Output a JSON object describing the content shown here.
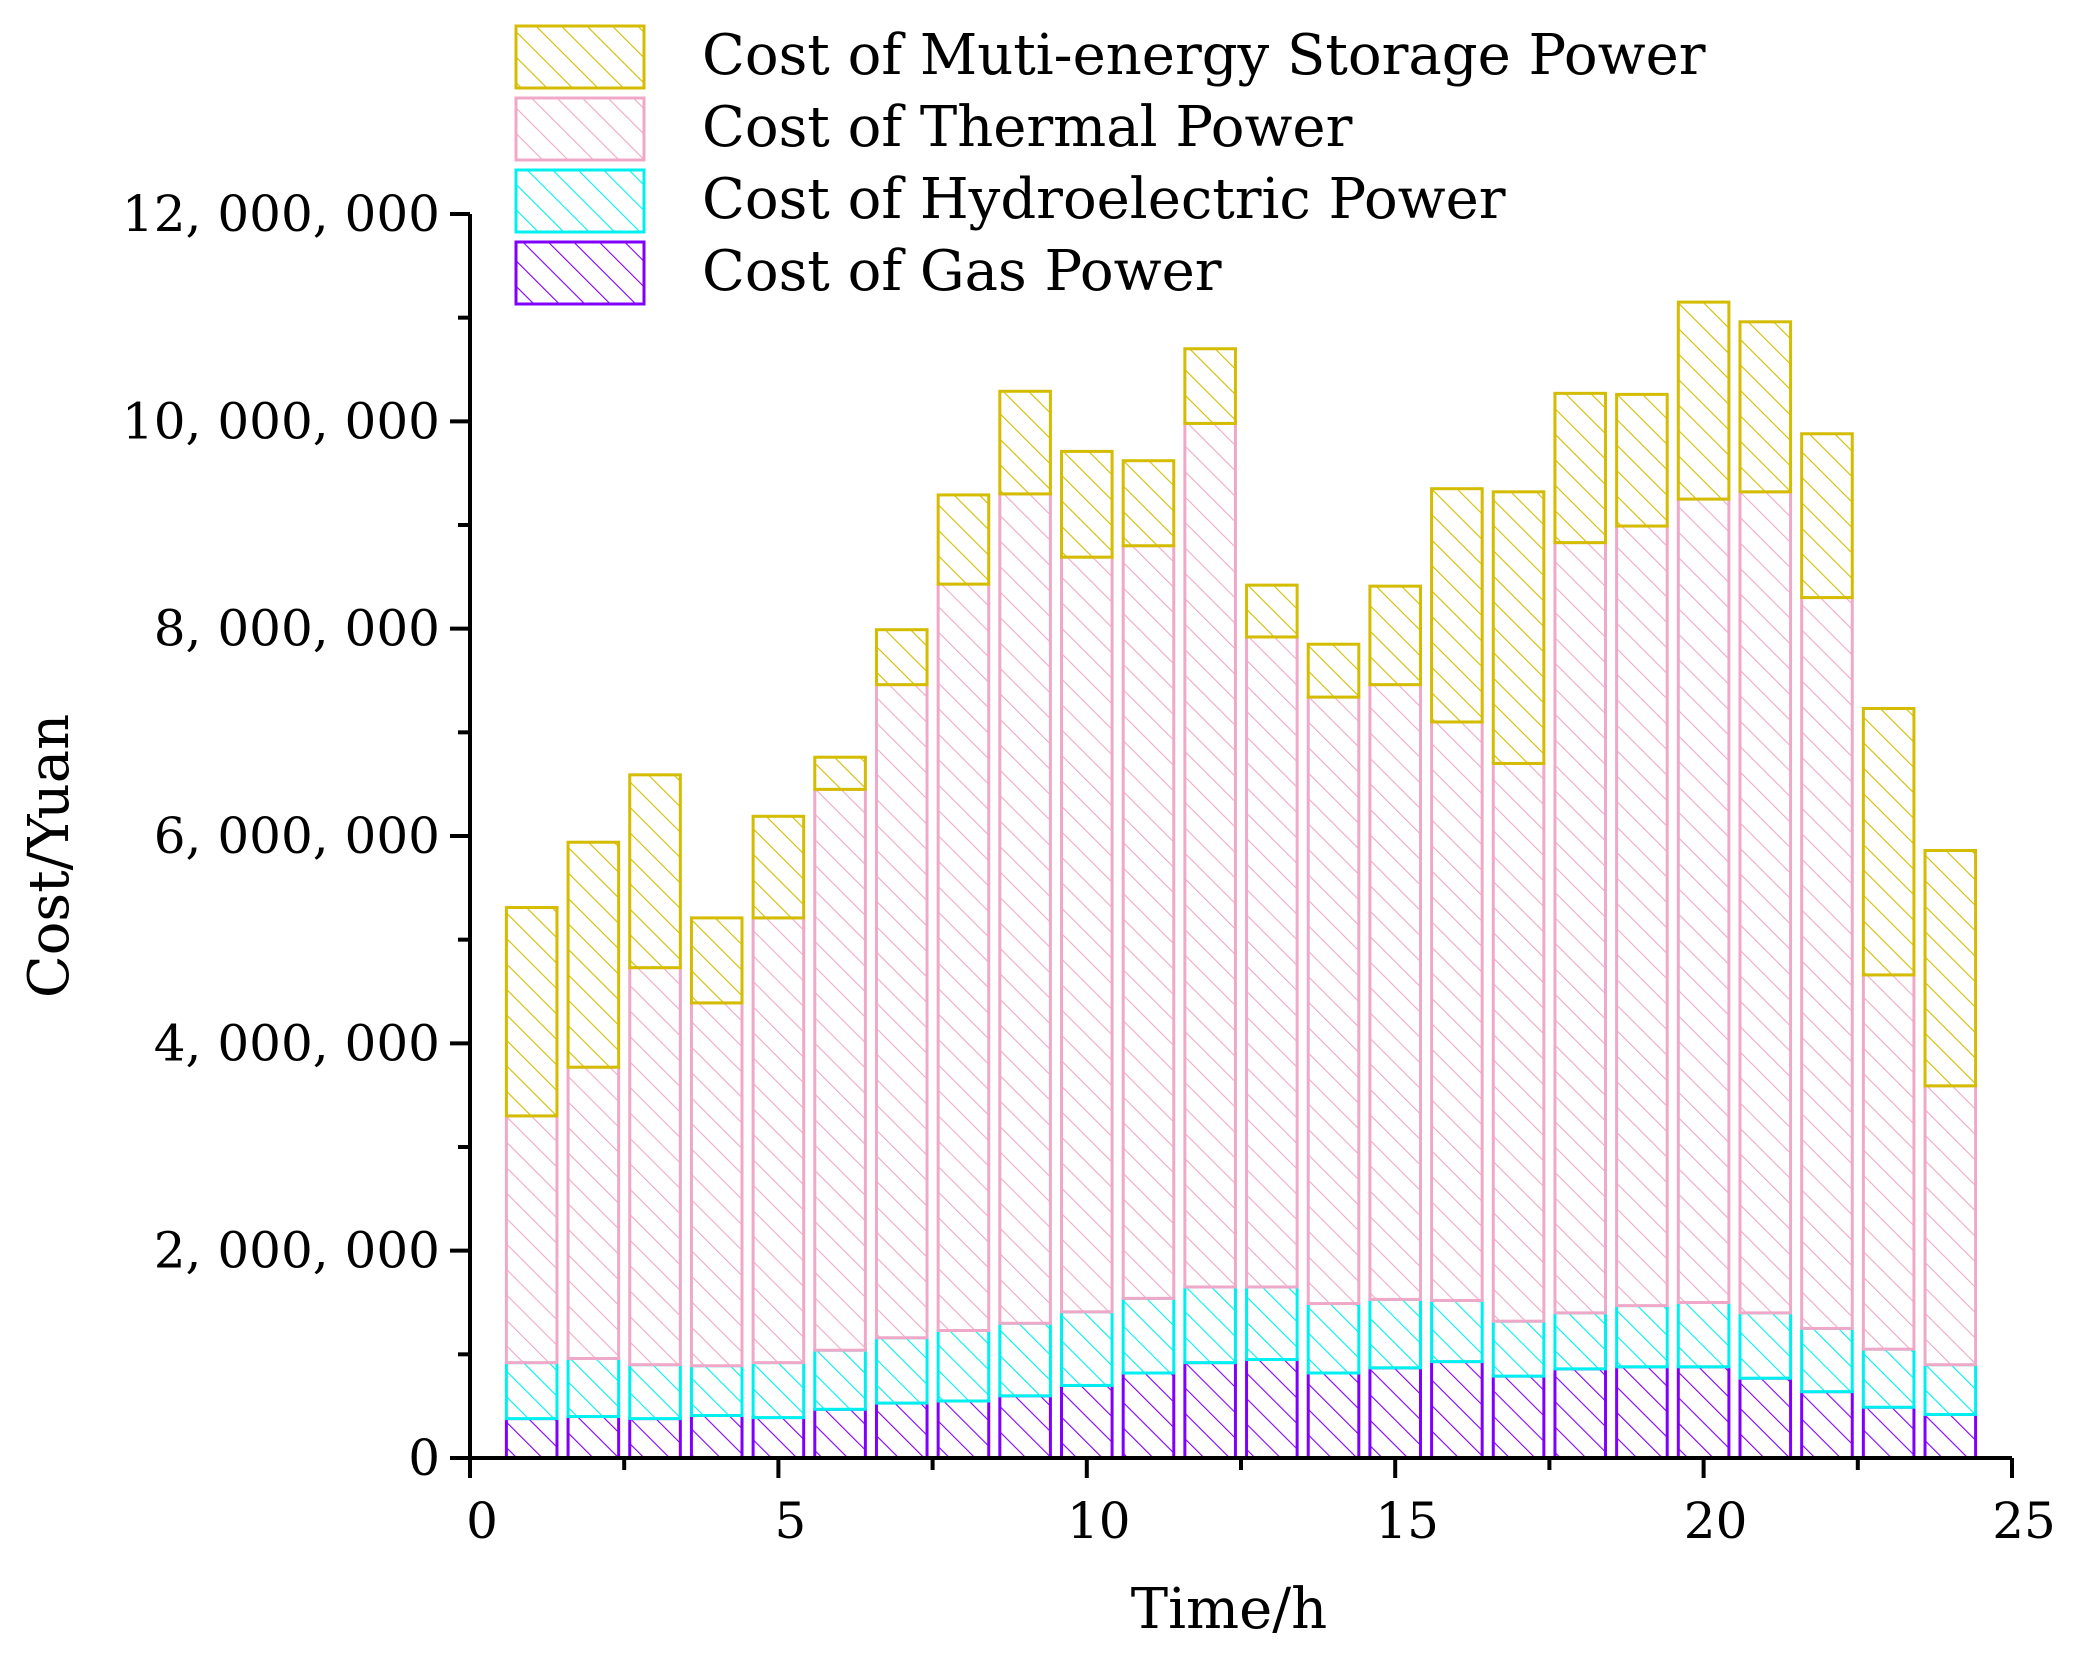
{
  "chart_data": {
    "type": "bar",
    "stacked": true,
    "xlabel": "Time/h",
    "ylabel": "Cost/Yuan",
    "xlim": [
      0,
      25
    ],
    "ylim": [
      0,
      12000000
    ],
    "x_ticks": [
      0,
      5,
      10,
      15,
      20,
      25
    ],
    "x_tick_labels": [
      "0",
      "5",
      "10",
      "15",
      "20",
      "25"
    ],
    "y_ticks": [
      0,
      2000000,
      4000000,
      6000000,
      8000000,
      10000000,
      12000000
    ],
    "y_tick_labels": [
      "0",
      "2, 000, 000",
      "4, 000, 000",
      "6, 000, 000",
      "8, 000, 000",
      "10, 000, 000",
      "12, 000, 000"
    ],
    "legend_position": "top-center",
    "x": [
      1,
      2,
      3,
      4,
      5,
      6,
      7,
      8,
      9,
      10,
      11,
      12,
      13,
      14,
      15,
      16,
      17,
      18,
      19,
      20,
      21,
      22,
      23,
      24
    ],
    "series": [
      {
        "name": "Cost of Gas Power",
        "stroke": "#8000ff",
        "fill": "#ffffff",
        "values": [
          380000,
          400000,
          380000,
          410000,
          390000,
          470000,
          530000,
          550000,
          600000,
          700000,
          820000,
          920000,
          950000,
          820000,
          870000,
          930000,
          790000,
          860000,
          880000,
          880000,
          770000,
          640000,
          490000,
          420000
        ]
      },
      {
        "name": "Cost of Hydroelectric Power",
        "stroke": "#00f0f0",
        "fill": "#ffffff",
        "values": [
          540000,
          560000,
          520000,
          480000,
          530000,
          570000,
          630000,
          680000,
          700000,
          710000,
          720000,
          730000,
          700000,
          670000,
          660000,
          590000,
          530000,
          540000,
          590000,
          620000,
          630000,
          610000,
          560000,
          480000
        ]
      },
      {
        "name": "Cost of Thermal Power",
        "stroke": "#f0a8c8",
        "fill": "#ffffff",
        "values": [
          2380000,
          2810000,
          3830000,
          3500000,
          4290000,
          5410000,
          6300000,
          7200000,
          8000000,
          7280000,
          7260000,
          8330000,
          6270000,
          5850000,
          5930000,
          5580000,
          5380000,
          7430000,
          7520000,
          7750000,
          7920000,
          7050000,
          3610000,
          2690000
        ]
      },
      {
        "name": "Cost of Muti-energy Storage Power",
        "stroke": "#d4bc00",
        "fill": "#ffffff",
        "values": [
          2010000,
          2170000,
          1860000,
          820000,
          980000,
          310000,
          530000,
          860000,
          990000,
          1020000,
          820000,
          720000,
          500000,
          510000,
          950000,
          2250000,
          2620000,
          1440000,
          1270000,
          1900000,
          1640000,
          1580000,
          2570000,
          2270000
        ]
      }
    ]
  }
}
